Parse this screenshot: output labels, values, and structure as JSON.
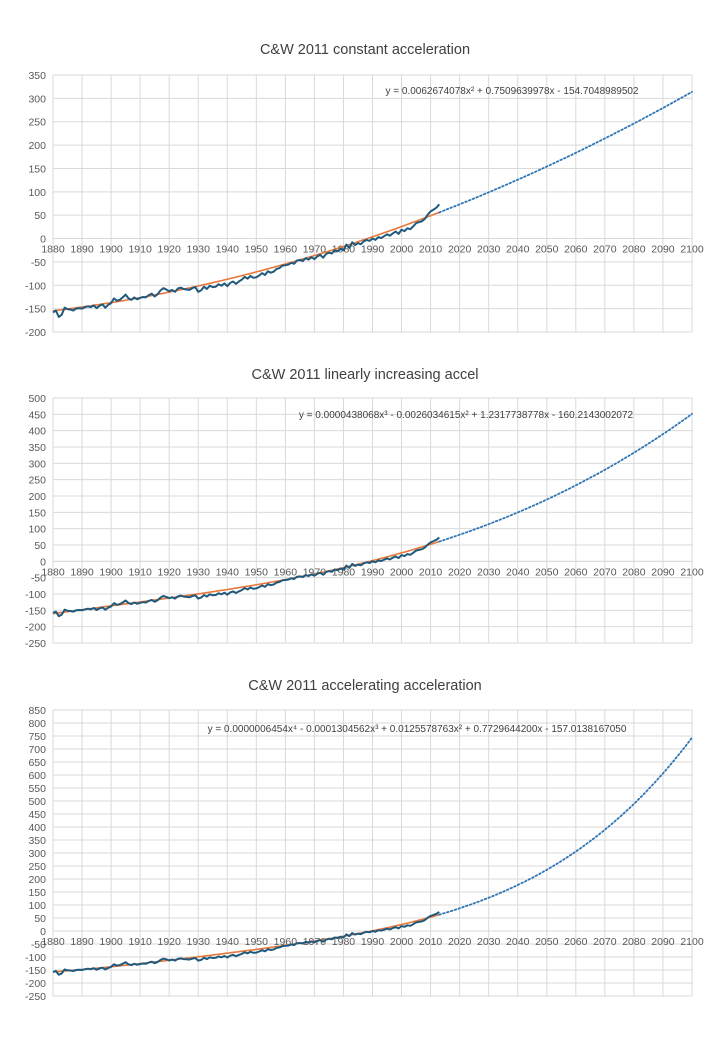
{
  "colors": {
    "observed": "#1f5a7d",
    "fit": "#e8773a",
    "projection": "#2e75b6",
    "grid": "#d9d9d9"
  },
  "chart_data": [
    {
      "type": "line",
      "title": "C&W 2011 constant acceleration",
      "equation": "y = 0.0062674078x² + 0.7509639978x - 154.7048989502",
      "coefficients": [
        -154.7048989502,
        0.7509639978,
        0.0062674078
      ],
      "x_origin_year": 1880,
      "xlim": [
        1880,
        2100
      ],
      "ylim": [
        -200,
        350
      ],
      "ystep": 50,
      "xticks": [
        "1880",
        "1890",
        "1900",
        "1910",
        "1920",
        "1930",
        "1940",
        "1950",
        "1960",
        "1970",
        "1980",
        "1990",
        "2000",
        "2010",
        "2020",
        "2030",
        "2040",
        "2050",
        "2060",
        "2070",
        "2080",
        "2090",
        "2100"
      ],
      "yticks": [
        "350",
        "300",
        "250",
        "200",
        "150",
        "100",
        "50",
        "0",
        "-50",
        "-100",
        "-150",
        "-200"
      ],
      "series": []
    },
    {
      "type": "line",
      "title": "C&W 2011 linearly increasing accel",
      "equation": "y = 0.0000438068x³ - 0.0026034615x² + 1.2317738778x - 160.2143002072",
      "coefficients": [
        -160.2143002072,
        1.2317738778,
        -0.0026034615,
        4.38068e-05
      ],
      "x_origin_year": 1880,
      "xlim": [
        1880,
        2100
      ],
      "ylim": [
        -250,
        500
      ],
      "ystep": 50,
      "xticks": [
        "1880",
        "1890",
        "1900",
        "1910",
        "1920",
        "1930",
        "1940",
        "1950",
        "1960",
        "1970",
        "1980",
        "1990",
        "2000",
        "2010",
        "2020",
        "2030",
        "2040",
        "2050",
        "2060",
        "2070",
        "2080",
        "2090",
        "2100"
      ],
      "yticks": [
        "500",
        "450",
        "400",
        "350",
        "300",
        "250",
        "200",
        "150",
        "100",
        "50",
        "0",
        "-50",
        "-100",
        "-150",
        "-200",
        "-250"
      ],
      "series": []
    },
    {
      "type": "line",
      "title": "C&W 2011 accelerating acceleration",
      "equation": "y = 0.0000006454x⁴ - 0.0001304562x³ + 0.0125578763x² + 0.7729644200x - 157.0138167050",
      "coefficients": [
        -157.013816705,
        0.77296442,
        0.0125578763,
        -0.0001304562,
        6.454e-07
      ],
      "x_origin_year": 1880,
      "xlim": [
        1880,
        2100
      ],
      "ylim": [
        -250,
        850
      ],
      "ystep": 50,
      "xticks": [
        "1880",
        "1890",
        "1900",
        "1910",
        "1920",
        "1930",
        "1940",
        "1950",
        "1960",
        "1970",
        "1980",
        "1990",
        "2000",
        "2010",
        "2020",
        "2030",
        "2040",
        "2050",
        "2060",
        "2070",
        "2080",
        "2090",
        "2100"
      ],
      "yticks": [
        "850",
        "800",
        "750",
        "700",
        "650",
        "600",
        "550",
        "500",
        "450",
        "400",
        "350",
        "300",
        "250",
        "200",
        "150",
        "100",
        "50",
        "0",
        "-50",
        "-100",
        "-150",
        "-200",
        "-250"
      ],
      "series": []
    }
  ],
  "observed_series": {
    "x": [
      1880,
      1881,
      1882,
      1883,
      1884,
      1885,
      1886,
      1887,
      1888,
      1889,
      1890,
      1891,
      1892,
      1893,
      1894,
      1895,
      1896,
      1897,
      1898,
      1899,
      1900,
      1901,
      1902,
      1903,
      1904,
      1905,
      1906,
      1907,
      1908,
      1909,
      1910,
      1911,
      1912,
      1913,
      1914,
      1915,
      1916,
      1917,
      1918,
      1919,
      1920,
      1921,
      1922,
      1923,
      1924,
      1925,
      1926,
      1927,
      1928,
      1929,
      1930,
      1931,
      1932,
      1933,
      1934,
      1935,
      1936,
      1937,
      1938,
      1939,
      1940,
      1941,
      1942,
      1943,
      1944,
      1945,
      1946,
      1947,
      1948,
      1949,
      1950,
      1951,
      1952,
      1953,
      1954,
      1955,
      1956,
      1957,
      1958,
      1959,
      1960,
      1961,
      1962,
      1963,
      1964,
      1965,
      1966,
      1967,
      1968,
      1969,
      1970,
      1971,
      1972,
      1973,
      1974,
      1975,
      1976,
      1977,
      1978,
      1979,
      1980,
      1981,
      1982,
      1983,
      1984,
      1985,
      1986,
      1987,
      1988,
      1989,
      1990,
      1991,
      1992,
      1993,
      1994,
      1995,
      1996,
      1997,
      1998,
      1999,
      2000,
      2001,
      2002,
      2003,
      2004,
      2005,
      2006,
      2007,
      2008,
      2009,
      2010,
      2011,
      2012,
      2013
    ],
    "y": [
      -158,
      -154,
      -168,
      -163,
      -148,
      -151,
      -152,
      -154,
      -150,
      -149,
      -150,
      -147,
      -145,
      -147,
      -143,
      -149,
      -144,
      -141,
      -148,
      -142,
      -138,
      -128,
      -133,
      -131,
      -126,
      -120,
      -128,
      -131,
      -126,
      -130,
      -127,
      -125,
      -126,
      -121,
      -118,
      -124,
      -119,
      -111,
      -106,
      -109,
      -113,
      -110,
      -114,
      -107,
      -105,
      -108,
      -109,
      -110,
      -106,
      -104,
      -114,
      -111,
      -103,
      -108,
      -101,
      -104,
      -103,
      -98,
      -101,
      -96,
      -102,
      -95,
      -92,
      -97,
      -92,
      -88,
      -82,
      -86,
      -80,
      -84,
      -83,
      -79,
      -74,
      -78,
      -70,
      -73,
      -71,
      -65,
      -63,
      -58,
      -57,
      -56,
      -52,
      -54,
      -47,
      -46,
      -48,
      -42,
      -45,
      -40,
      -44,
      -38,
      -35,
      -41,
      -33,
      -30,
      -32,
      -25,
      -27,
      -22,
      -25,
      -13,
      -20,
      -8,
      -14,
      -10,
      -12,
      -6,
      -3,
      -5,
      0,
      -3,
      3,
      1,
      5,
      9,
      6,
      11,
      15,
      10,
      19,
      16,
      22,
      20,
      26,
      33,
      35,
      37,
      42,
      51,
      58,
      62,
      66,
      73
    ]
  },
  "fit_end_year": 2013,
  "chart_1_title": "C&W 2011 constant acceleration",
  "chart_2_title": "C&W 2011 linearly increasing accel",
  "chart_3_title": "C&W 2011 accelerating acceleration"
}
